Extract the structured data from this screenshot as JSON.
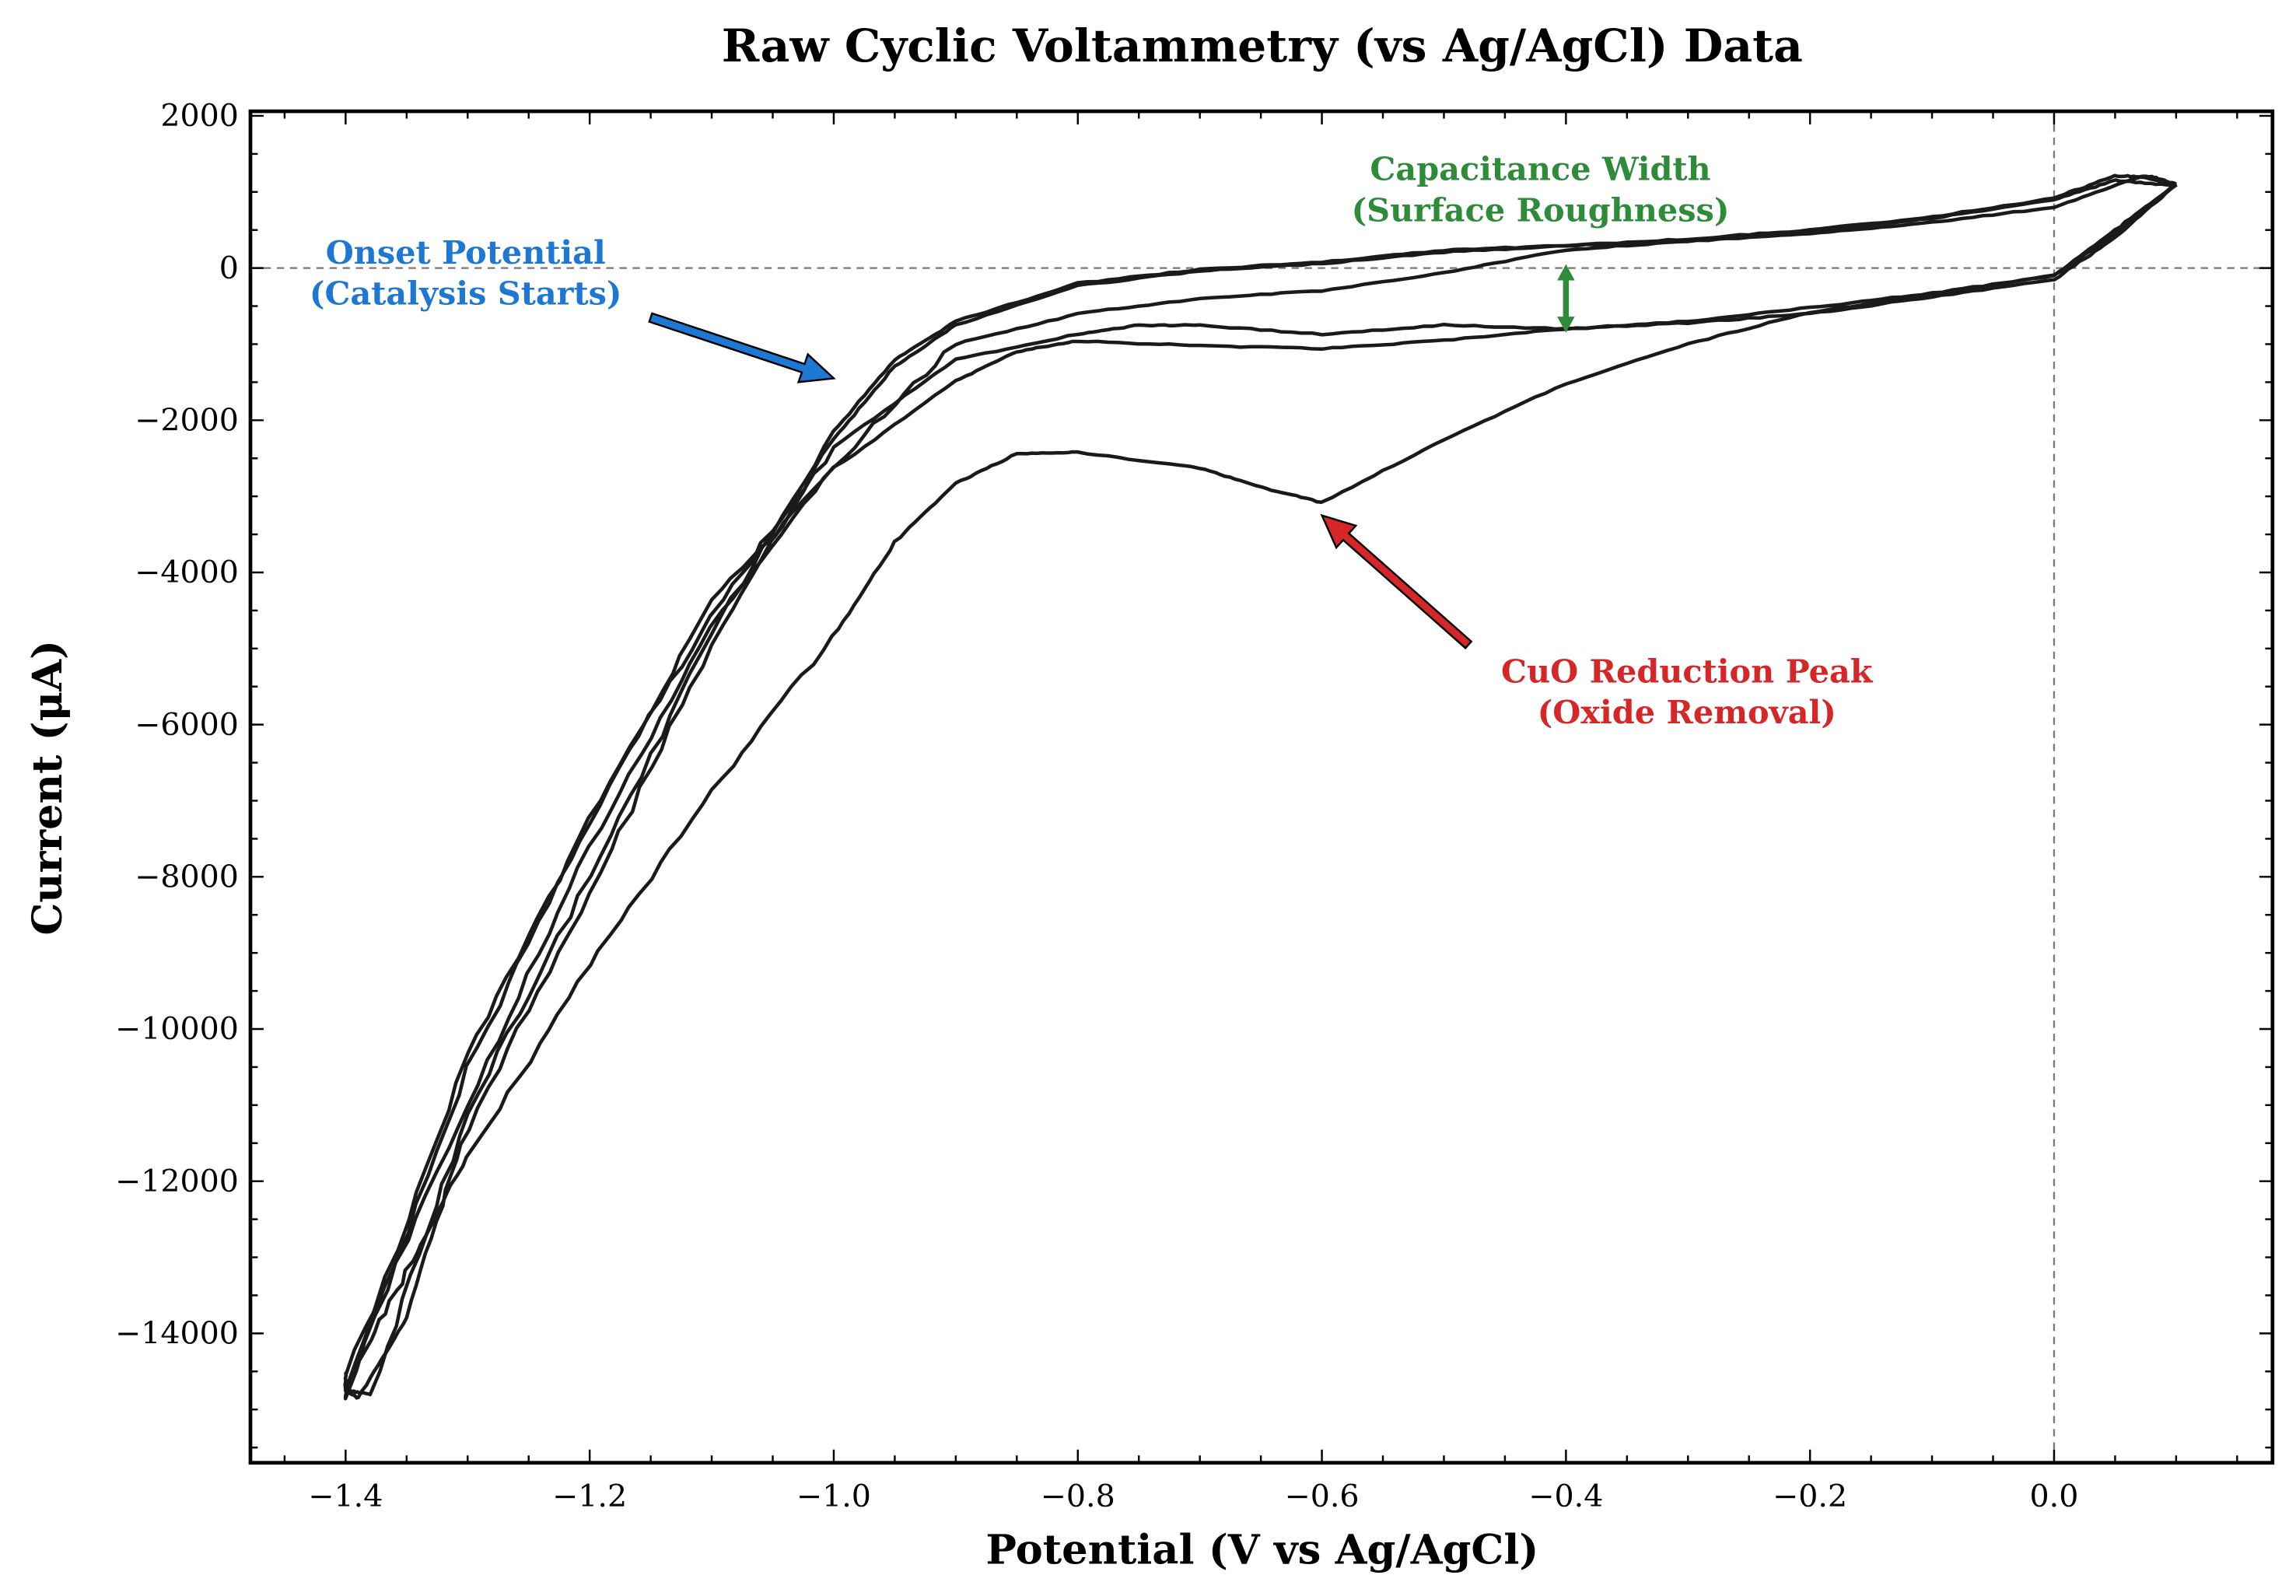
{
  "chart_data": {
    "type": "line",
    "title": "Raw Cyclic Voltammetry (vs Ag/AgCl) Data",
    "xlabel": "Potential (V vs Ag/AgCl)",
    "ylabel": "Current (μA)",
    "xlim": [
      -1.478,
      0.179
    ],
    "ylim": [
      -15700,
      2060
    ],
    "xticks": [
      -1.4,
      -1.2,
      -1.0,
      -0.8,
      -0.6,
      -0.4,
      -0.2,
      0.0
    ],
    "xtick_labels": [
      "−1.4",
      "−1.2",
      "−1.0",
      "−0.8",
      "−0.6",
      "−0.4",
      "−0.2",
      "0.0"
    ],
    "yticks": [
      2000,
      0,
      -2000,
      -4000,
      -6000,
      -8000,
      -10000,
      -12000,
      -14000
    ],
    "ytick_labels": [
      "2000",
      "0",
      "−2000",
      "−4000",
      "−6000",
      "−8000",
      "−10000",
      "−12000",
      "−14000"
    ],
    "grid": false,
    "reference_lines": {
      "y": 0,
      "x": 0.0
    },
    "line_color": "#1a1a1a",
    "series": [
      {
        "x": [
          0.1,
          0.05,
          0.0,
          -0.1,
          -0.2,
          -0.3,
          -0.4,
          -0.5,
          -0.6,
          -0.65,
          -0.7,
          -0.8,
          -0.85,
          -0.9,
          -0.95,
          -1.0,
          -1.1,
          -1.2,
          -1.3,
          -1.35,
          -1.4,
          -1.39,
          -1.35,
          -1.3,
          -1.2,
          -1.1,
          -1.0,
          -0.95,
          -0.9,
          -0.8,
          -0.7,
          -0.6,
          -0.5,
          -0.4,
          -0.3,
          -0.2,
          -0.1,
          0.0,
          0.05,
          0.08,
          0.1
        ],
        "y": [
          1100,
          500,
          -100,
          -350,
          -580,
          -1000,
          -1520,
          -2250,
          -3080,
          -2880,
          -2630,
          -2420,
          -2440,
          -2830,
          -3600,
          -4850,
          -6870,
          -9170,
          -11670,
          -13200,
          -14750,
          -14850,
          -13800,
          -11300,
          -8200,
          -4950,
          -2250,
          -1290,
          -750,
          -230,
          -40,
          60,
          210,
          290,
          380,
          500,
          670,
          920,
          1210,
          1200,
          1100
        ]
      },
      {
        "x": [
          0.1,
          0.05,
          0.0,
          -0.1,
          -0.2,
          -0.3,
          -0.4,
          -0.5,
          -0.6,
          -0.7,
          -0.8,
          -0.85,
          -0.9,
          -1.0,
          -1.1,
          -1.2,
          -1.3,
          -1.4,
          -1.38,
          -1.3,
          -1.2,
          -1.1,
          -1.0,
          -0.95,
          -0.9,
          -0.8,
          -0.7,
          -0.6,
          -0.5,
          -0.4,
          -0.3,
          -0.2,
          -0.1,
          0.0,
          0.05,
          0.1
        ],
        "y": [
          1100,
          450,
          -100,
          -330,
          -520,
          -700,
          -800,
          -950,
          -1060,
          -1020,
          -960,
          -1100,
          -1480,
          -2640,
          -4370,
          -7250,
          -10330,
          -14750,
          -14800,
          -11100,
          -8000,
          -4800,
          -2150,
          -1200,
          -700,
          -200,
          -20,
          80,
          230,
          300,
          360,
          480,
          650,
          900,
          1150,
          1080
        ]
      },
      {
        "x": [
          0.1,
          0.05,
          0.0,
          -0.1,
          -0.2,
          -0.3,
          -0.4,
          -0.5,
          -0.6,
          -0.7,
          -0.75,
          -0.8,
          -0.9,
          -1.0,
          -1.1,
          -1.2,
          -1.3,
          -1.4,
          -1.4,
          -1.3,
          -1.2,
          -1.1,
          -1.0,
          -0.9,
          -0.8,
          -0.7,
          -0.6,
          -0.5,
          -0.4,
          -0.3,
          -0.2,
          -0.1,
          0.0,
          0.07,
          0.1
        ],
        "y": [
          1100,
          400,
          -150,
          -380,
          -600,
          -720,
          -800,
          -750,
          -870,
          -750,
          -750,
          -870,
          -1200,
          -2350,
          -4550,
          -7250,
          -10500,
          -14850,
          -14500,
          -11000,
          -7600,
          -4700,
          -2600,
          -1000,
          -600,
          -400,
          -300,
          -60,
          240,
          350,
          450,
          600,
          800,
          1200,
          1100
        ]
      }
    ],
    "annotations": [
      {
        "text": [
          "Onset Potential",
          "(Catalysis Starts)"
        ],
        "color": "#1f77d4",
        "arrow_from": [
          -1.15,
          -650
        ],
        "arrow_to": [
          -1.0,
          -1450
        ]
      },
      {
        "text": [
          "CuO Reduction Peak",
          "(Oxide Removal)"
        ],
        "color": "#d62728",
        "arrow_from": [
          -0.48,
          -4950
        ],
        "arrow_to": [
          -0.6,
          -3250
        ]
      },
      {
        "text": [
          "Capacitance Width",
          "(Surface Roughness)"
        ],
        "color": "#2e8b3a",
        "arrow_from": [
          -0.4,
          50
        ],
        "arrow_to": [
          -0.4,
          -850
        ]
      }
    ]
  }
}
